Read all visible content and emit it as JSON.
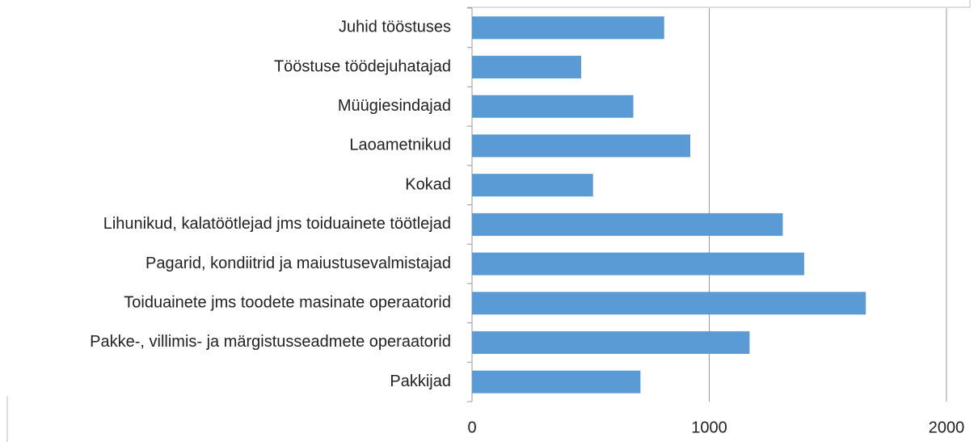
{
  "chart_data": {
    "type": "barh",
    "categories": [
      "Juhid tööstuses",
      "Tööstuse töödejuhatajad",
      "Müügiesindajad",
      "Laoametnikud",
      "Kokad",
      "Lihunikud, kalatöötlejad jms toiduainete töötlejad",
      "Pagarid, kondiitrid ja maiustusevalmistajad",
      "Toiduainete jms toodete masinate operaatorid",
      "Pakke-, villimis- ja märgistusseadmete operaatorid",
      "Pakkijad"
    ],
    "values": [
      810,
      460,
      680,
      920,
      510,
      1310,
      1400,
      1660,
      1170,
      710
    ],
    "color": "#5b9bd5",
    "xlim": [
      0,
      2000
    ],
    "xticks": [
      0,
      1000,
      2000
    ],
    "grid": true
  }
}
